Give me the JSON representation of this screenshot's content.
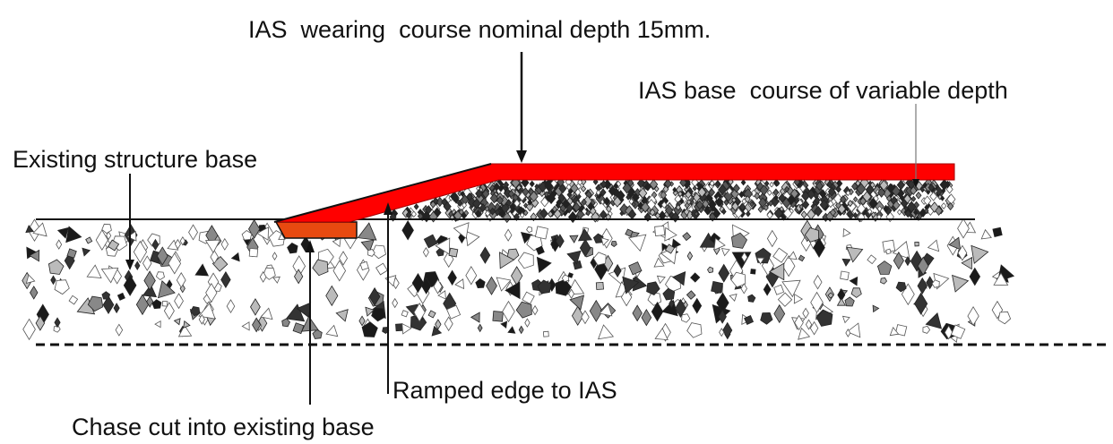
{
  "labels": {
    "wearing_course": "IAS  wearing  course nominal depth 15mm.",
    "base_course": "IAS base  course of variable depth",
    "existing_base": "Existing structure base",
    "ramped_edge": "Ramped edge to IAS",
    "chase_cut": "Chase cut into existing base"
  },
  "colors": {
    "wearing_course": "#ff0000",
    "chase_fill": "#e84a10",
    "line": "#111111",
    "aggregate_dark": "#333333",
    "aggregate_mid": "#888888",
    "aggregate_light": "#bbbbbb",
    "aggregate_outline": "#555555"
  }
}
